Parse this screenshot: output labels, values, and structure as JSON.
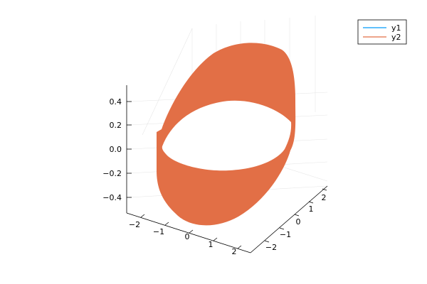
{
  "chart_data": {
    "type": "surface3d",
    "title": "",
    "xlabel": "",
    "ylabel": "",
    "zlabel": "",
    "xlim": [
      -2.5,
      2.5
    ],
    "ylim": [
      -2.5,
      2.5
    ],
    "zlim": [
      -0.5,
      0.5
    ],
    "x_ticks": [
      "−2",
      "−1",
      "0",
      "1",
      "2"
    ],
    "y_ticks": [
      "−2",
      "−1",
      "0",
      "1",
      "2"
    ],
    "z_ticks": [
      "−0.4",
      "−0.2",
      "0.0",
      "0.2",
      "0.4"
    ],
    "grid": true,
    "legend_position": "top-right",
    "series": [
      {
        "name": "y1",
        "color": "#009AFA",
        "kind": "line"
      },
      {
        "name": "y2",
        "color": "#E26F46",
        "kind": "band"
      }
    ]
  }
}
